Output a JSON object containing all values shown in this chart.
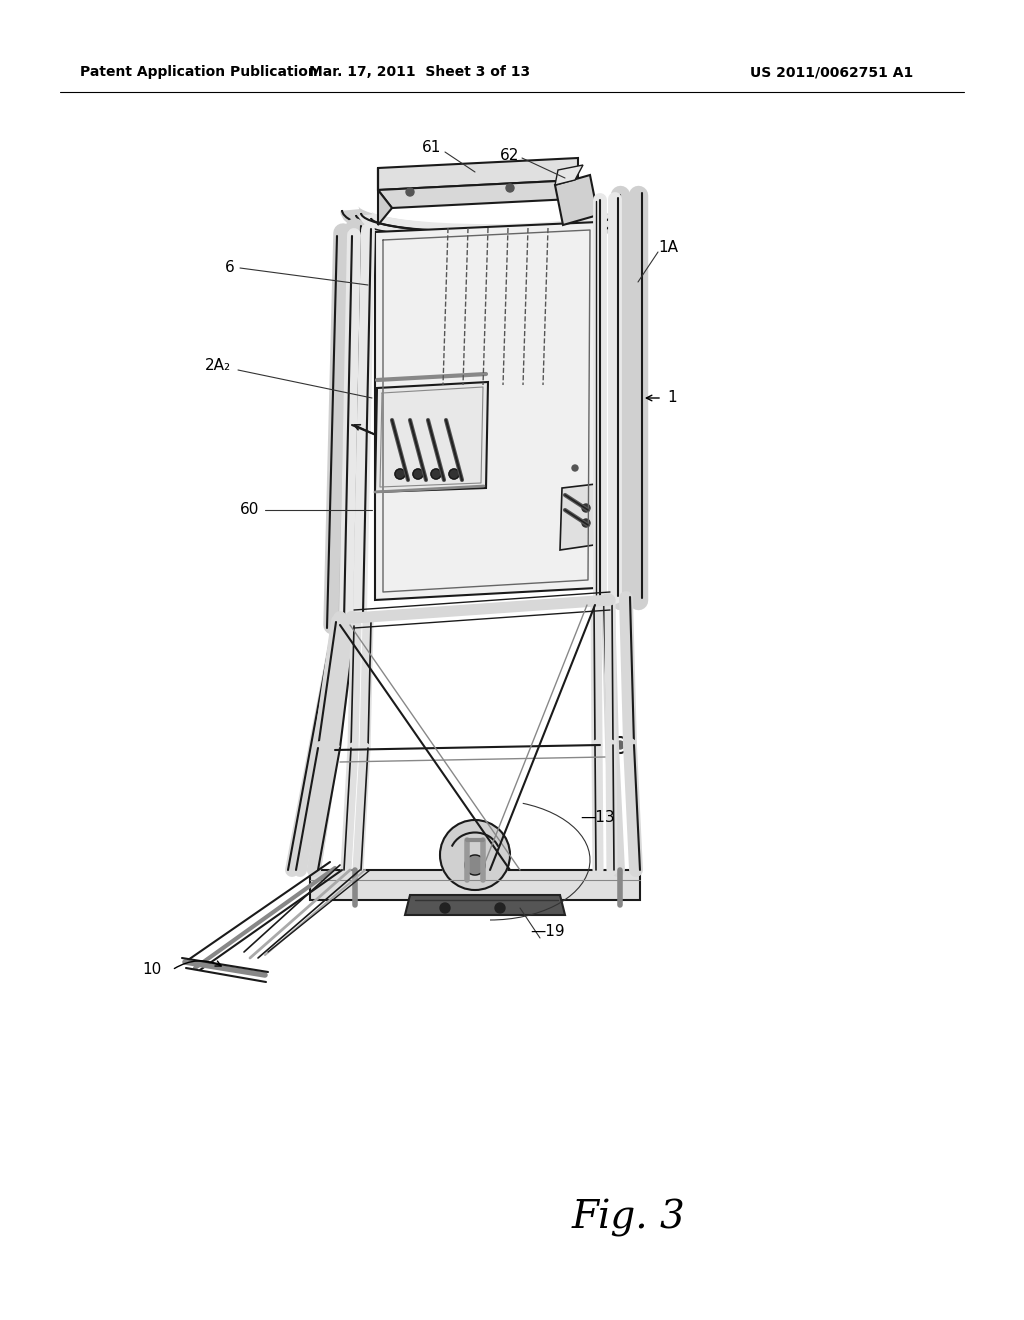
{
  "background_color": "#ffffff",
  "header_left": "Patent Application Publication",
  "header_middle": "Mar. 17, 2011  Sheet 3 of 13",
  "header_right": "US 2011/0062751 A1",
  "figure_label": "Fig. 3",
  "line_color": "#1a1a1a",
  "text_color": "#000000",
  "label_fontsize": 11,
  "header_fontsize": 10,
  "fig_label_fontsize": 28
}
